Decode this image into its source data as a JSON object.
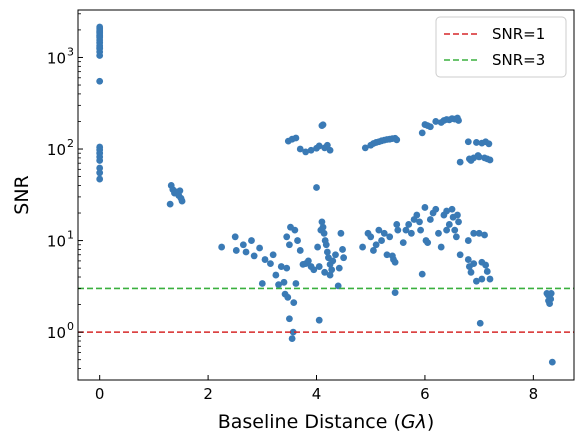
{
  "chart_data": {
    "type": "scatter",
    "xlabel_prefix": "Baseline Distance (",
    "xlabel_var": "Gλ",
    "xlabel_suffix": ")",
    "ylabel": "SNR",
    "yscale": "log",
    "xlim": [
      -0.4,
      8.75
    ],
    "ylim": [
      0.3,
      3300
    ],
    "x_ticks": [
      0,
      2,
      4,
      6,
      8
    ],
    "x_tick_labels": [
      "0",
      "2",
      "4",
      "6",
      "8"
    ],
    "y_ticks": [
      1,
      10,
      100,
      1000
    ],
    "y_tick_labels": [
      "10",
      "10",
      "10",
      "10"
    ],
    "y_tick_exponents": [
      "0",
      "1",
      "2",
      "3"
    ],
    "grid": false,
    "legend_position": "top-right",
    "colors": {
      "points": "#3a7ab5",
      "snr1": "#d62728",
      "snr3": "#3ab03e"
    },
    "reference_lines": [
      {
        "name": "SNR=1",
        "y": 1,
        "color": "#d62728",
        "style": "dashed"
      },
      {
        "name": "SNR=3",
        "y": 3,
        "color": "#3ab03e",
        "style": "dashed"
      }
    ],
    "series": [
      {
        "points": [
          [
            0,
            2150
          ],
          [
            0,
            2050
          ],
          [
            0,
            1950
          ],
          [
            0,
            1850
          ],
          [
            0,
            1750
          ],
          [
            0,
            1650
          ],
          [
            0,
            1550
          ],
          [
            0,
            1450
          ],
          [
            0,
            1350
          ],
          [
            0,
            1250
          ],
          [
            0,
            1150
          ],
          [
            0,
            1050
          ],
          [
            0,
            1900
          ],
          [
            0,
            1700
          ],
          [
            0,
            1300
          ],
          [
            0,
            550
          ],
          [
            0,
            105
          ],
          [
            0,
            98
          ],
          [
            0,
            90
          ],
          [
            0,
            82
          ],
          [
            0,
            75
          ],
          [
            0,
            62
          ],
          [
            0,
            55
          ],
          [
            0,
            47
          ],
          [
            1.32,
            40
          ],
          [
            1.35,
            36
          ],
          [
            1.38,
            33
          ],
          [
            1.42,
            34
          ],
          [
            1.46,
            31
          ],
          [
            1.5,
            29
          ],
          [
            1.52,
            27
          ],
          [
            1.3,
            25
          ],
          [
            1.48,
            35
          ],
          [
            2.25,
            8.5
          ],
          [
            2.5,
            11
          ],
          [
            2.52,
            7.8
          ],
          [
            2.65,
            9
          ],
          [
            2.7,
            7.5
          ],
          [
            2.8,
            10
          ],
          [
            2.85,
            6.8
          ],
          [
            2.95,
            8.3
          ],
          [
            3.0,
            3.4
          ],
          [
            3.05,
            6.2
          ],
          [
            3.15,
            5.6
          ],
          [
            3.2,
            7.0
          ],
          [
            3.25,
            4.2
          ],
          [
            3.3,
            3.3
          ],
          [
            3.35,
            5.2
          ],
          [
            3.4,
            3.5
          ],
          [
            3.42,
            2.6
          ],
          [
            3.45,
            11
          ],
          [
            3.47,
            2.4
          ],
          [
            3.5,
            9
          ],
          [
            3.52,
            14
          ],
          [
            3.55,
            0.85
          ],
          [
            3.57,
            1.0
          ],
          [
            3.6,
            13
          ],
          [
            3.62,
            3.4
          ],
          [
            3.45,
            5.0
          ],
          [
            3.5,
            1.4
          ],
          [
            3.58,
            2.1
          ],
          [
            3.48,
            122
          ],
          [
            3.55,
            128
          ],
          [
            3.62,
            132
          ],
          [
            3.7,
            100
          ],
          [
            3.8,
            93
          ],
          [
            3.9,
            97
          ],
          [
            4.0,
            102
          ],
          [
            4.05,
            108
          ],
          [
            4.1,
            180
          ],
          [
            4.12,
            184
          ],
          [
            4.15,
            103
          ],
          [
            4.2,
            110
          ],
          [
            4.25,
            97
          ],
          [
            3.65,
            10
          ],
          [
            3.7,
            7.8
          ],
          [
            3.75,
            5.5
          ],
          [
            3.8,
            5.6
          ],
          [
            3.85,
            6.0
          ],
          [
            3.9,
            5.2
          ],
          [
            3.95,
            4.8
          ],
          [
            4.0,
            38
          ],
          [
            4.02,
            8.5
          ],
          [
            4.05,
            1.35
          ],
          [
            4.08,
            13
          ],
          [
            4.1,
            16
          ],
          [
            4.12,
            14
          ],
          [
            4.14,
            12
          ],
          [
            4.16,
            10
          ],
          [
            4.18,
            9
          ],
          [
            4.2,
            7.5
          ],
          [
            4.22,
            6.5
          ],
          [
            4.25,
            5.5
          ],
          [
            4.28,
            4.8
          ],
          [
            4.3,
            6.0
          ],
          [
            4.35,
            7.0
          ],
          [
            4.4,
            3.2
          ],
          [
            4.42,
            5.0
          ],
          [
            4.45,
            12
          ],
          [
            4.48,
            8.0
          ],
          [
            4.5,
            6.5
          ],
          [
            4.05,
            5.2
          ],
          [
            4.15,
            4.5
          ],
          [
            4.25,
            4.2
          ],
          [
            4.9,
            103
          ],
          [
            5.0,
            110
          ],
          [
            5.05,
            115
          ],
          [
            5.1,
            118
          ],
          [
            5.15,
            120
          ],
          [
            5.2,
            123
          ],
          [
            5.25,
            125
          ],
          [
            5.3,
            127
          ],
          [
            5.35,
            128
          ],
          [
            5.4,
            130
          ],
          [
            5.45,
            131
          ],
          [
            5.48,
            126
          ],
          [
            4.85,
            8.5
          ],
          [
            4.95,
            12
          ],
          [
            5.0,
            11
          ],
          [
            5.05,
            7.8
          ],
          [
            5.1,
            9
          ],
          [
            5.15,
            13
          ],
          [
            5.2,
            10
          ],
          [
            5.25,
            12
          ],
          [
            5.3,
            7.0
          ],
          [
            5.35,
            11
          ],
          [
            5.4,
            6.8
          ],
          [
            5.42,
            6.2
          ],
          [
            5.45,
            2.7
          ],
          [
            5.48,
            15
          ],
          [
            5.5,
            13
          ],
          [
            5.45,
            5.8
          ],
          [
            5.6,
            9.5
          ],
          [
            5.65,
            13
          ],
          [
            5.7,
            15
          ],
          [
            5.75,
            12
          ],
          [
            5.8,
            17
          ],
          [
            5.85,
            19
          ],
          [
            5.9,
            16
          ],
          [
            5.92,
            13
          ],
          [
            5.95,
            4.3
          ],
          [
            6.0,
            23
          ],
          [
            6.02,
            10
          ],
          [
            6.05,
            9.5
          ],
          [
            6.1,
            17
          ],
          [
            6.15,
            20
          ],
          [
            6.2,
            22
          ],
          [
            6.25,
            12
          ],
          [
            6.3,
            8.5
          ],
          [
            6.35,
            19
          ],
          [
            6.4,
            21
          ],
          [
            6.45,
            15
          ],
          [
            6.5,
            22
          ],
          [
            6.52,
            18
          ],
          [
            6.55,
            13
          ],
          [
            6.58,
            11
          ],
          [
            6.6,
            19
          ],
          [
            6.62,
            16
          ],
          [
            6.4,
            13
          ],
          [
            5.95,
            150
          ],
          [
            6.0,
            185
          ],
          [
            6.05,
            180
          ],
          [
            6.1,
            175
          ],
          [
            6.2,
            200
          ],
          [
            6.3,
            195
          ],
          [
            6.35,
            205
          ],
          [
            6.4,
            210
          ],
          [
            6.45,
            208
          ],
          [
            6.5,
            215
          ],
          [
            6.55,
            212
          ],
          [
            6.6,
            218
          ],
          [
            6.62,
            205
          ],
          [
            6.65,
            72
          ],
          [
            6.8,
            120
          ],
          [
            6.82,
            78
          ],
          [
            6.85,
            75
          ],
          [
            6.9,
            80
          ],
          [
            6.95,
            118
          ],
          [
            7.0,
            82
          ],
          [
            7.05,
            116
          ],
          [
            7.1,
            80
          ],
          [
            7.12,
            120
          ],
          [
            7.15,
            78
          ],
          [
            7.18,
            114
          ],
          [
            7.2,
            76
          ],
          [
            6.98,
            85
          ],
          [
            6.65,
            7.0
          ],
          [
            6.8,
            10
          ],
          [
            6.82,
            5.2
          ],
          [
            6.85,
            4.5
          ],
          [
            6.9,
            5.6
          ],
          [
            6.95,
            3.6
          ],
          [
            7.0,
            12
          ],
          [
            7.02,
            1.25
          ],
          [
            7.05,
            5.8
          ],
          [
            7.1,
            11.5
          ],
          [
            7.12,
            5.4
          ],
          [
            7.15,
            4.6
          ],
          [
            7.2,
            3.8
          ],
          [
            6.9,
            12
          ],
          [
            7.05,
            3.8
          ],
          [
            6.8,
            6.2
          ],
          [
            8.25,
            2.65
          ],
          [
            8.27,
            2.55
          ],
          [
            8.3,
            2.6
          ],
          [
            8.32,
            2.3
          ],
          [
            8.28,
            2.2
          ],
          [
            8.3,
            2.05
          ],
          [
            8.33,
            2.65
          ],
          [
            8.35,
            0.47
          ]
        ]
      }
    ]
  }
}
